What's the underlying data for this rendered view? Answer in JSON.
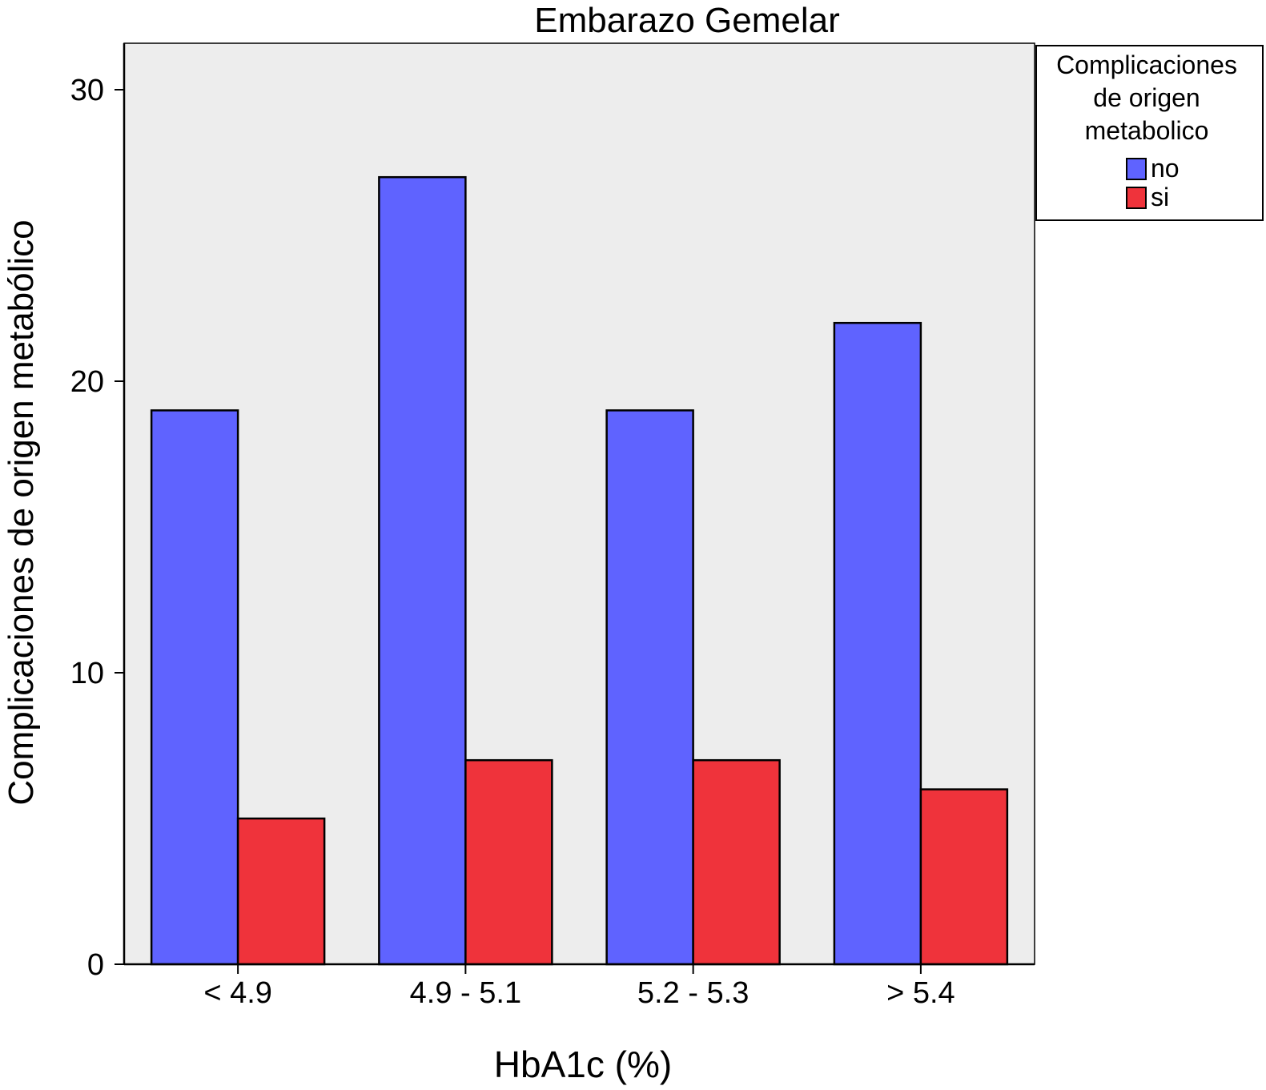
{
  "chart_data": {
    "type": "bar",
    "title": "Embarazo Gemelar",
    "xlabel": "HbA1c (%)",
    "ylabel": "Complicaciones de origen metabólico",
    "categories": [
      "< 4.9",
      "4.9 - 5.1",
      "5.2 - 5.3",
      "> 5.4"
    ],
    "series": [
      {
        "name": "no",
        "values": [
          19,
          27,
          19,
          22
        ],
        "color": "#5f63ff"
      },
      {
        "name": "si",
        "values": [
          5,
          7,
          7,
          6
        ],
        "color": "#ef333b"
      }
    ],
    "ylim": [
      0,
      30
    ],
    "yticks": [
      "0",
      "10",
      "20",
      "30"
    ],
    "plot_background": "#ededed",
    "grid": false,
    "legend": {
      "title": "Complicaciones de origen metabolico",
      "title_lines": [
        "Complicaciones",
        "de origen",
        "metabolico"
      ],
      "position": "top-right, outside plot"
    }
  }
}
